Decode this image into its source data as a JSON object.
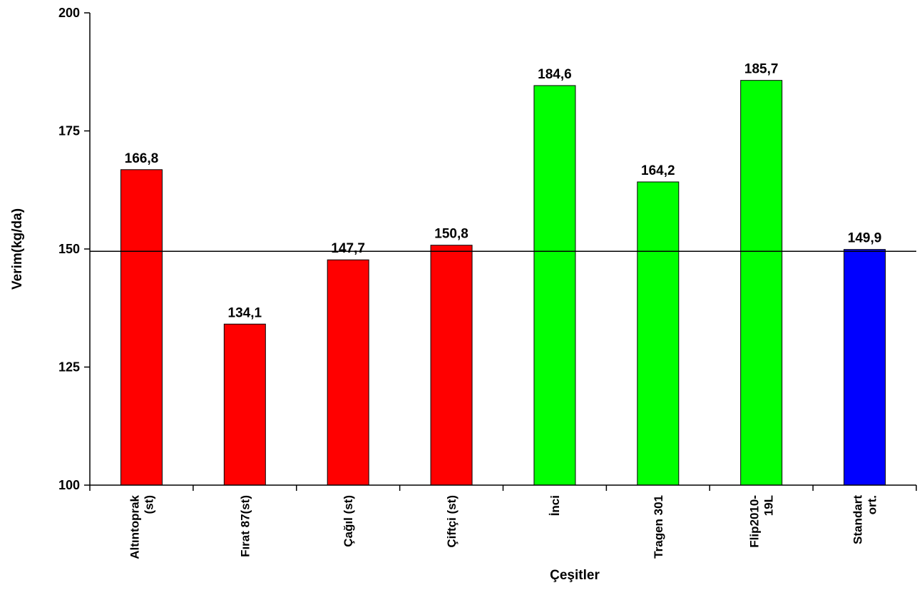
{
  "chart_data": {
    "type": "bar",
    "title": "",
    "xlabel": "Çeşitler",
    "ylabel": "Verim(kg/da)",
    "ylim": [
      100,
      200
    ],
    "yticks": [
      "100",
      "125",
      "150",
      "175",
      "200"
    ],
    "ytick_values": [
      100,
      125,
      150,
      175,
      200
    ],
    "grid": false,
    "legend": "none",
    "reference_line": {
      "value": 149.5
    },
    "categories": [
      [
        "Altıntoprak",
        "(st)"
      ],
      [
        "Fırat 87(st)"
      ],
      [
        "Çağıl (st)"
      ],
      [
        "Çiftçi (st)"
      ],
      [
        "İnci"
      ],
      [
        "Tragen 301"
      ],
      [
        "Flip2010-",
        "19L"
      ],
      [
        "Standart",
        "ort."
      ]
    ],
    "values": [
      166.8,
      134.1,
      147.7,
      150.8,
      184.6,
      164.2,
      185.7,
      149.9
    ],
    "value_labels": [
      "166,8",
      "134,1",
      "147,7",
      "150,8",
      "184,6",
      "164,2",
      "185,7",
      "149,9"
    ],
    "bar_colors": [
      "#ff0000",
      "#ff0000",
      "#ff0000",
      "#ff0000",
      "#00ff00",
      "#00ff00",
      "#00ff00",
      "#0000ff"
    ]
  }
}
